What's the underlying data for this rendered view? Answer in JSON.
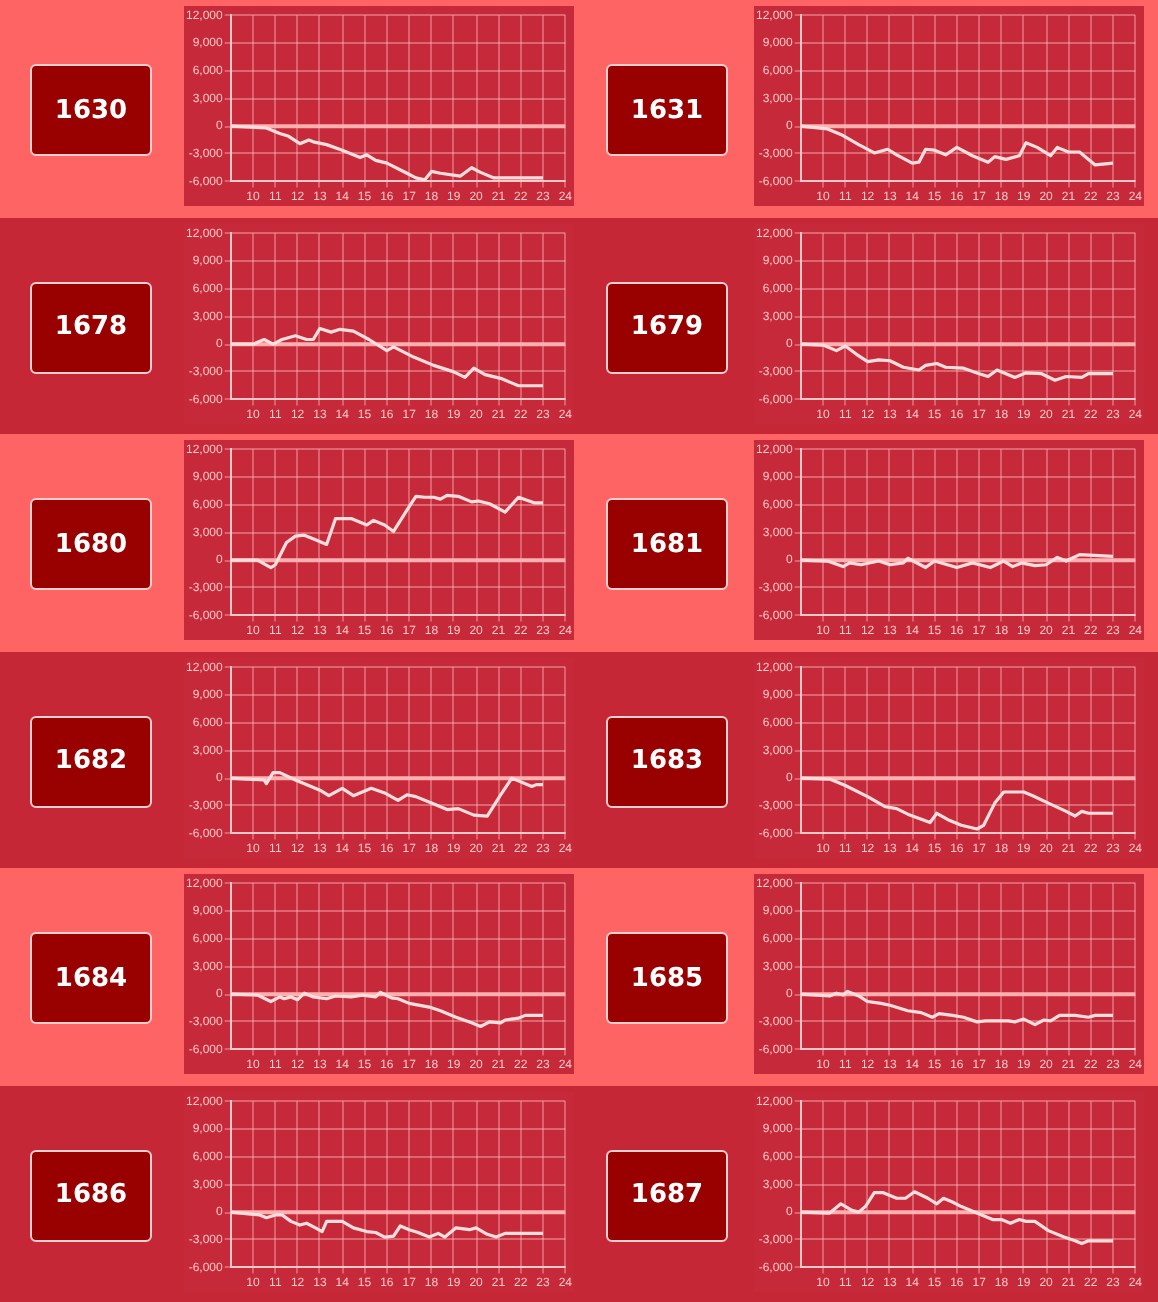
{
  "chart_data": [
    {
      "type": "line",
      "title": "1630",
      "color": "#ffdede",
      "marker": "none",
      "grid": true,
      "xlim": [
        9,
        24
      ],
      "xticks": [
        10,
        11,
        12,
        13,
        14,
        15,
        16,
        17,
        18,
        19,
        20,
        21,
        22,
        23,
        24
      ],
      "ylim": [
        -6000,
        12000
      ],
      "yticks": [
        {
          "value": -6000,
          "label": "-6,000"
        },
        {
          "value": -3000,
          "label": "-3,000"
        },
        {
          "value": 0,
          "label": "0"
        },
        {
          "value": 3000,
          "label": "3,000"
        },
        {
          "value": 6000,
          "label": "6,000"
        },
        {
          "value": 9000,
          "label": "9,000"
        },
        {
          "value": 12000,
          "label": "12,000"
        }
      ],
      "ref_lines": [
        {
          "axis": "y",
          "value": 0,
          "color": "#ffb0b0"
        }
      ],
      "x": [
        9,
        10.6,
        11.2,
        11.6,
        12.1,
        12.5,
        12.7,
        13.3,
        14,
        14.8,
        15.1,
        15.5,
        16,
        16.9,
        17.3,
        17.7,
        18,
        18.4,
        19.3,
        19.8,
        20.2,
        20.8,
        21,
        23
      ],
      "values": [
        0,
        -200,
        -800,
        -1100,
        -1900,
        -1500,
        -1700,
        -2000,
        -2600,
        -3400,
        -3100,
        -3700,
        -4000,
        -5100,
        -5600,
        -5800,
        -4900,
        -5100,
        -5400,
        -4500,
        -5000,
        -5600,
        -5600,
        -5600
      ]
    },
    {
      "type": "line",
      "title": "1631",
      "color": "#ffdede",
      "marker": "none",
      "grid": true,
      "xlim": [
        9,
        24
      ],
      "xticks": [
        10,
        11,
        12,
        13,
        14,
        15,
        16,
        17,
        18,
        19,
        20,
        21,
        22,
        23,
        24
      ],
      "ylim": [
        -6000,
        12000
      ],
      "yticks": [
        {
          "value": -6000,
          "label": "-6,000"
        },
        {
          "value": -3000,
          "label": "-3,000"
        },
        {
          "value": 0,
          "label": "0"
        },
        {
          "value": 3000,
          "label": "3,000"
        },
        {
          "value": 6000,
          "label": "6,000"
        },
        {
          "value": 9000,
          "label": "9,000"
        },
        {
          "value": 12000,
          "label": "12,000"
        }
      ],
      "ref_lines": [
        {
          "axis": "y",
          "value": 0,
          "color": "#ffb0b0"
        }
      ],
      "x": [
        9,
        10.2,
        10.8,
        11.6,
        12.3,
        12.9,
        13.3,
        14,
        14.3,
        14.6,
        15,
        15.5,
        16,
        16.7,
        17.4,
        17.7,
        18.2,
        18.8,
        19.1,
        19.6,
        20.2,
        20.5,
        21,
        21.5,
        22.2,
        23
      ],
      "values": [
        0,
        -300,
        -900,
        -2000,
        -2900,
        -2500,
        -3100,
        -4000,
        -3900,
        -2500,
        -2600,
        -3100,
        -2300,
        -3200,
        -3900,
        -3300,
        -3600,
        -3200,
        -1800,
        -2300,
        -3200,
        -2300,
        -2800,
        -2800,
        -4200,
        -4000
      ]
    },
    {
      "type": "line",
      "title": "1678",
      "color": "#ffdede",
      "marker": "none",
      "grid": true,
      "xlim": [
        9,
        24
      ],
      "xticks": [
        10,
        11,
        12,
        13,
        14,
        15,
        16,
        17,
        18,
        19,
        20,
        21,
        22,
        23,
        24
      ],
      "ylim": [
        -6000,
        12000
      ],
      "yticks": [
        {
          "value": -6000,
          "label": "-6,000"
        },
        {
          "value": -3000,
          "label": "-3,000"
        },
        {
          "value": 0,
          "label": "0"
        },
        {
          "value": 3000,
          "label": "3,000"
        },
        {
          "value": 6000,
          "label": "6,000"
        },
        {
          "value": 9000,
          "label": "9,000"
        },
        {
          "value": 12000,
          "label": "12,000"
        }
      ],
      "ref_lines": [
        {
          "axis": "y",
          "value": 0,
          "color": "#ffb0b0"
        }
      ],
      "x": [
        9,
        10,
        10.5,
        10.9,
        11.3,
        11.9,
        12.4,
        12.7,
        13,
        13.5,
        13.9,
        14.5,
        15.2,
        16,
        16.3,
        17.2,
        18.1,
        19,
        19.5,
        19.9,
        20.4,
        21.1,
        21.9,
        23
      ],
      "values": [
        0,
        0,
        500,
        0,
        500,
        900,
        500,
        500,
        1700,
        1300,
        1600,
        1400,
        500,
        -700,
        -300,
        -1400,
        -2300,
        -3000,
        -3600,
        -2600,
        -3300,
        -3700,
        -4500,
        -4500
      ]
    },
    {
      "type": "line",
      "title": "1679",
      "color": "#ffdede",
      "marker": "none",
      "grid": true,
      "xlim": [
        9,
        24
      ],
      "xticks": [
        10,
        11,
        12,
        13,
        14,
        15,
        16,
        17,
        18,
        19,
        20,
        21,
        22,
        23,
        24
      ],
      "ylim": [
        -6000,
        12000
      ],
      "yticks": [
        {
          "value": -6000,
          "label": "-6,000"
        },
        {
          "value": -3000,
          "label": "-3,000"
        },
        {
          "value": 0,
          "label": "0"
        },
        {
          "value": 3000,
          "label": "3,000"
        },
        {
          "value": 6000,
          "label": "6,000"
        },
        {
          "value": 9000,
          "label": "9,000"
        },
        {
          "value": 12000,
          "label": "12,000"
        }
      ],
      "ref_lines": [
        {
          "axis": "y",
          "value": 0,
          "color": "#ffb0b0"
        }
      ],
      "x": [
        9,
        10,
        10.6,
        11,
        11.5,
        12,
        12.5,
        13,
        13.6,
        14.3,
        14.6,
        15.1,
        15.5,
        16.3,
        17,
        17.4,
        17.8,
        18.6,
        19.1,
        19.8,
        20.4,
        20.9,
        21.6,
        21.9,
        23
      ],
      "values": [
        0,
        -100,
        -700,
        -200,
        -1100,
        -1900,
        -1700,
        -1800,
        -2500,
        -2800,
        -2300,
        -2100,
        -2500,
        -2600,
        -3200,
        -3500,
        -2800,
        -3600,
        -3100,
        -3200,
        -3900,
        -3500,
        -3600,
        -3200,
        -3200
      ]
    },
    {
      "type": "line",
      "title": "1680",
      "color": "#ffdede",
      "marker": "none",
      "grid": true,
      "xlim": [
        9,
        24
      ],
      "xticks": [
        10,
        11,
        12,
        13,
        14,
        15,
        16,
        17,
        18,
        19,
        20,
        21,
        22,
        23,
        24
      ],
      "ylim": [
        -6000,
        12000
      ],
      "yticks": [
        {
          "value": -6000,
          "label": "-6,000"
        },
        {
          "value": -3000,
          "label": "-3,000"
        },
        {
          "value": 0,
          "label": "0"
        },
        {
          "value": 3000,
          "label": "3,000"
        },
        {
          "value": 6000,
          "label": "6,000"
        },
        {
          "value": 9000,
          "label": "9,000"
        },
        {
          "value": 12000,
          "label": "12,000"
        }
      ],
      "ref_lines": [
        {
          "axis": "y",
          "value": 0,
          "color": "#ffb0b0"
        }
      ],
      "x": [
        9,
        10.2,
        10.8,
        11,
        11.5,
        11.9,
        12.3,
        12.8,
        13.3,
        13.7,
        14.4,
        15.1,
        15.4,
        15.9,
        16.3,
        16.9,
        17.3,
        17.7,
        18.1,
        18.4,
        18.7,
        19.2,
        19.8,
        20.1,
        20.6,
        21.3,
        21.9,
        22.6,
        23
      ],
      "values": [
        0,
        0,
        -800,
        -500,
        1900,
        2600,
        2700,
        2200,
        1700,
        4500,
        4500,
        3800,
        4300,
        3800,
        3100,
        5400,
        6900,
        6800,
        6800,
        6600,
        7000,
        6900,
        6300,
        6400,
        6100,
        5200,
        6800,
        6200,
        6200
      ]
    },
    {
      "type": "line",
      "title": "1681",
      "color": "#ffdede",
      "marker": "none",
      "grid": true,
      "xlim": [
        9,
        24
      ],
      "xticks": [
        10,
        11,
        12,
        13,
        14,
        15,
        16,
        17,
        18,
        19,
        20,
        21,
        22,
        23,
        24
      ],
      "ylim": [
        -6000,
        12000
      ],
      "yticks": [
        {
          "value": -6000,
          "label": "-6,000"
        },
        {
          "value": -3000,
          "label": "-3,000"
        },
        {
          "value": 0,
          "label": "0"
        },
        {
          "value": 3000,
          "label": "3,000"
        },
        {
          "value": 6000,
          "label": "6,000"
        },
        {
          "value": 9000,
          "label": "9,000"
        },
        {
          "value": 12000,
          "label": "12,000"
        }
      ],
      "ref_lines": [
        {
          "axis": "y",
          "value": 0,
          "color": "#ffb0b0"
        }
      ],
      "x": [
        9,
        10.2,
        10.9,
        11.2,
        11.7,
        12.5,
        13,
        13.6,
        13.8,
        14.6,
        15,
        16,
        16.7,
        17.5,
        18.1,
        18.5,
        18.9,
        19.5,
        20,
        20.5,
        20.9,
        21.5,
        23
      ],
      "values": [
        0,
        -100,
        -700,
        -300,
        -500,
        -100,
        -500,
        -300,
        200,
        -800,
        -100,
        -800,
        -300,
        -800,
        -100,
        -700,
        -300,
        -600,
        -500,
        300,
        -100,
        600,
        400
      ]
    },
    {
      "type": "line",
      "title": "1682",
      "color": "#ffdede",
      "marker": "none",
      "grid": true,
      "xlim": [
        9,
        24
      ],
      "xticks": [
        10,
        11,
        12,
        13,
        14,
        15,
        16,
        17,
        18,
        19,
        20,
        21,
        22,
        23,
        24
      ],
      "ylim": [
        -6000,
        12000
      ],
      "yticks": [
        {
          "value": -6000,
          "label": "-6,000"
        },
        {
          "value": -3000,
          "label": "-3,000"
        },
        {
          "value": 0,
          "label": "0"
        },
        {
          "value": 3000,
          "label": "3,000"
        },
        {
          "value": 6000,
          "label": "6,000"
        },
        {
          "value": 9000,
          "label": "9,000"
        },
        {
          "value": 12000,
          "label": "12,000"
        }
      ],
      "ref_lines": [
        {
          "axis": "y",
          "value": 0,
          "color": "#ffb0b0"
        }
      ],
      "x": [
        9,
        10.5,
        10.6,
        10.9,
        11.2,
        11.9,
        12.6,
        13,
        13.4,
        14,
        14.5,
        15.3,
        15.9,
        16.5,
        16.9,
        17.3,
        18,
        18.7,
        19.2,
        19.9,
        20.5,
        21.1,
        21.6,
        22.5,
        22.7,
        23
      ],
      "values": [
        0,
        -200,
        -600,
        600,
        600,
        -200,
        -900,
        -1300,
        -1900,
        -1100,
        -1900,
        -1100,
        -1600,
        -2400,
        -1800,
        -2000,
        -2700,
        -3400,
        -3300,
        -4000,
        -4100,
        -1800,
        0,
        -900,
        -700,
        -700
      ]
    },
    {
      "type": "line",
      "title": "1683",
      "color": "#ffdede",
      "marker": "none",
      "grid": true,
      "xlim": [
        9,
        24
      ],
      "xticks": [
        10,
        11,
        12,
        13,
        14,
        15,
        16,
        17,
        18,
        19,
        20,
        21,
        22,
        23,
        24
      ],
      "ylim": [
        -6000,
        12000
      ],
      "yticks": [
        {
          "value": -6000,
          "label": "-6,000"
        },
        {
          "value": -3000,
          "label": "-3,000"
        },
        {
          "value": 0,
          "label": "0"
        },
        {
          "value": 3000,
          "label": "3,000"
        },
        {
          "value": 6000,
          "label": "6,000"
        },
        {
          "value": 9000,
          "label": "9,000"
        },
        {
          "value": 12000,
          "label": "12,000"
        }
      ],
      "ref_lines": [
        {
          "axis": "y",
          "value": 0,
          "color": "#ffb0b0"
        }
      ],
      "x": [
        9,
        10.3,
        11,
        12,
        12.8,
        13.3,
        13.8,
        14.8,
        15.1,
        15.6,
        16.2,
        16.9,
        17.2,
        17.7,
        18.1,
        19,
        19.4,
        20.1,
        20.9,
        21.3,
        21.6,
        21.9,
        23
      ],
      "values": [
        0,
        -100,
        -800,
        -2000,
        -3100,
        -3300,
        -3900,
        -4800,
        -3800,
        -4500,
        -5100,
        -5500,
        -5100,
        -2700,
        -1500,
        -1500,
        -1900,
        -2700,
        -3600,
        -4100,
        -3600,
        -3800,
        -3800
      ]
    },
    {
      "type": "line",
      "title": "1684",
      "color": "#ffdede",
      "marker": "none",
      "grid": true,
      "xlim": [
        9,
        24
      ],
      "xticks": [
        10,
        11,
        12,
        13,
        14,
        15,
        16,
        17,
        18,
        19,
        20,
        21,
        22,
        23,
        24
      ],
      "ylim": [
        -6000,
        12000
      ],
      "yticks": [
        {
          "value": -6000,
          "label": "-6,000"
        },
        {
          "value": -3000,
          "label": "-3,000"
        },
        {
          "value": 0,
          "label": "0"
        },
        {
          "value": 3000,
          "label": "3,000"
        },
        {
          "value": 6000,
          "label": "6,000"
        },
        {
          "value": 9000,
          "label": "9,000"
        },
        {
          "value": 12000,
          "label": "12,000"
        }
      ],
      "ref_lines": [
        {
          "axis": "y",
          "value": 0,
          "color": "#ffb0b0"
        }
      ],
      "x": [
        9,
        10.2,
        10.8,
        11.2,
        11.4,
        11.7,
        12,
        12.3,
        12.7,
        13.3,
        13.7,
        14.4,
        14.9,
        15.5,
        15.7,
        16.2,
        16.5,
        17,
        17.9,
        18.4,
        19.1,
        19.8,
        20.2,
        20.6,
        21.1,
        21.3,
        21.9,
        22.2,
        23
      ],
      "values": [
        0,
        -100,
        -800,
        -300,
        -500,
        -300,
        -600,
        100,
        -300,
        -500,
        -200,
        -300,
        -100,
        -300,
        200,
        -400,
        -500,
        -1000,
        -1400,
        -1800,
        -2500,
        -3100,
        -3500,
        -3000,
        -3100,
        -2800,
        -2600,
        -2300,
        -2300
      ]
    },
    {
      "type": "line",
      "title": "1685",
      "color": "#ffdede",
      "marker": "none",
      "grid": true,
      "xlim": [
        9,
        24
      ],
      "xticks": [
        10,
        11,
        12,
        13,
        14,
        15,
        16,
        17,
        18,
        19,
        20,
        21,
        22,
        23,
        24
      ],
      "ylim": [
        -6000,
        12000
      ],
      "yticks": [
        {
          "value": -6000,
          "label": "-6,000"
        },
        {
          "value": -3000,
          "label": "-3,000"
        },
        {
          "value": 0,
          "label": "0"
        },
        {
          "value": 3000,
          "label": "3,000"
        },
        {
          "value": 6000,
          "label": "6,000"
        },
        {
          "value": 9000,
          "label": "9,000"
        },
        {
          "value": 12000,
          "label": "12,000"
        }
      ],
      "ref_lines": [
        {
          "axis": "y",
          "value": 0,
          "color": "#ffb0b0"
        }
      ],
      "x": [
        9,
        10.3,
        10.6,
        10.9,
        11.1,
        11.6,
        12,
        12.6,
        13,
        13.8,
        14.4,
        14.9,
        15.2,
        15.8,
        16.3,
        16.9,
        17.3,
        18.3,
        18.6,
        19,
        19.5,
        19.9,
        20.2,
        20.6,
        21.3,
        21.9,
        22.2,
        23
      ],
      "values": [
        0,
        -200,
        100,
        -100,
        300,
        -200,
        -800,
        -1000,
        -1200,
        -1800,
        -2000,
        -2500,
        -2100,
        -2300,
        -2500,
        -3000,
        -2900,
        -2900,
        -3000,
        -2700,
        -3300,
        -2800,
        -2900,
        -2300,
        -2300,
        -2500,
        -2300,
        -2300
      ]
    },
    {
      "type": "line",
      "title": "1686",
      "color": "#ffdede",
      "marker": "none",
      "grid": true,
      "xlim": [
        9,
        24
      ],
      "xticks": [
        10,
        11,
        12,
        13,
        14,
        15,
        16,
        17,
        18,
        19,
        20,
        21,
        22,
        23,
        24
      ],
      "ylim": [
        -6000,
        12000
      ],
      "yticks": [
        {
          "value": -6000,
          "label": "-6,000"
        },
        {
          "value": -3000,
          "label": "-3,000"
        },
        {
          "value": 0,
          "label": "0"
        },
        {
          "value": 3000,
          "label": "3,000"
        },
        {
          "value": 6000,
          "label": "6,000"
        },
        {
          "value": 9000,
          "label": "9,000"
        },
        {
          "value": 12000,
          "label": "12,000"
        }
      ],
      "ref_lines": [
        {
          "axis": "y",
          "value": 0,
          "color": "#ffb0b0"
        }
      ],
      "x": [
        9,
        10.3,
        10.6,
        11,
        11.3,
        11.7,
        12.1,
        12.4,
        12.8,
        13.1,
        13.3,
        14,
        14.5,
        15.1,
        15.5,
        15.9,
        16.3,
        16.6,
        17,
        17.4,
        17.9,
        18.3,
        18.6,
        19.1,
        19.7,
        20,
        20.5,
        20.9,
        21.3,
        23
      ],
      "values": [
        0,
        -300,
        -600,
        -300,
        -300,
        -1000,
        -1400,
        -1200,
        -1700,
        -2100,
        -1000,
        -1000,
        -1700,
        -2100,
        -2200,
        -2700,
        -2600,
        -1500,
        -1900,
        -2200,
        -2700,
        -2300,
        -2700,
        -1700,
        -1900,
        -1700,
        -2400,
        -2700,
        -2300,
        -2300
      ]
    },
    {
      "type": "line",
      "title": "1687",
      "color": "#ffdede",
      "marker": "none",
      "grid": true,
      "xlim": [
        9,
        24
      ],
      "xticks": [
        10,
        11,
        12,
        13,
        14,
        15,
        16,
        17,
        18,
        19,
        20,
        21,
        22,
        23,
        24
      ],
      "ylim": [
        -6000,
        12000
      ],
      "yticks": [
        {
          "value": -6000,
          "label": "-6,000"
        },
        {
          "value": -3000,
          "label": "-3,000"
        },
        {
          "value": 0,
          "label": "0"
        },
        {
          "value": 3000,
          "label": "3,000"
        },
        {
          "value": 6000,
          "label": "6,000"
        },
        {
          "value": 9000,
          "label": "9,000"
        },
        {
          "value": 12000,
          "label": "12,000"
        }
      ],
      "ref_lines": [
        {
          "axis": "y",
          "value": 0,
          "color": "#ffb0b0"
        }
      ],
      "x": [
        9,
        10.3,
        10.8,
        11.3,
        11.6,
        11.9,
        12.3,
        12.7,
        13.3,
        13.7,
        14.1,
        14.7,
        15.1,
        15.4,
        15.8,
        16.2,
        16.9,
        17.6,
        18,
        18.4,
        18.8,
        19.1,
        19.5,
        20.1,
        20.8,
        21.3,
        21.6,
        21.9,
        23
      ],
      "values": [
        0,
        -100,
        900,
        200,
        0,
        600,
        2100,
        2100,
        1500,
        1500,
        2200,
        1500,
        900,
        1500,
        1100,
        600,
        -100,
        -800,
        -800,
        -1200,
        -800,
        -1000,
        -1000,
        -2000,
        -2700,
        -3100,
        -3400,
        -3100,
        -3100
      ]
    }
  ]
}
